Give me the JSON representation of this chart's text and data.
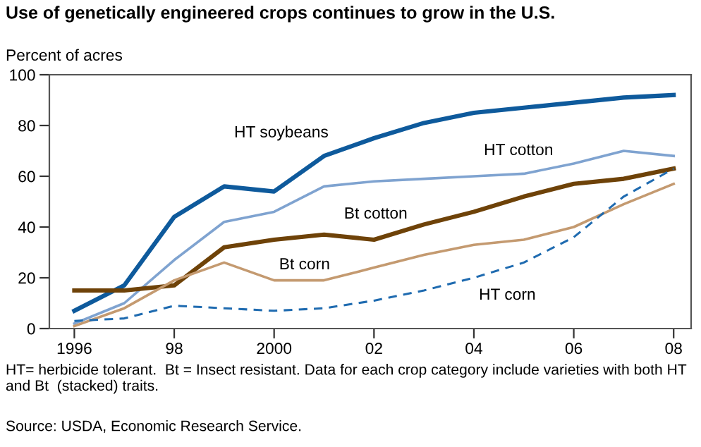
{
  "chart_data": {
    "type": "line",
    "title": "Use of genetically engineered crops continues to grow in the U.S.",
    "ylabel": "Percent of acres",
    "x": [
      1996,
      1997,
      1998,
      1999,
      2000,
      2001,
      2002,
      2003,
      2004,
      2005,
      2006,
      2007,
      2008
    ],
    "series": [
      {
        "name": "HT soybeans",
        "color": "#0e5a9c",
        "values": [
          7,
          17,
          44,
          56,
          54,
          68,
          75,
          81,
          85,
          87,
          89,
          91,
          92
        ]
      },
      {
        "name": "HT cotton",
        "color": "#7fa3d0",
        "values": [
          2,
          10,
          27,
          42,
          46,
          56,
          58,
          59,
          60,
          61,
          65,
          70,
          68
        ]
      },
      {
        "name": "Bt cotton",
        "color": "#6e4208",
        "values": [
          15,
          15,
          17,
          32,
          35,
          37,
          35,
          41,
          46,
          52,
          57,
          59,
          63
        ]
      },
      {
        "name": "Bt corn",
        "color": "#c49a70",
        "values": [
          1,
          8,
          19,
          26,
          19,
          19,
          24,
          29,
          33,
          35,
          40,
          49,
          57
        ]
      },
      {
        "name": "HT corn",
        "color": "#1f6bb0",
        "line_style": "dashed",
        "values": [
          3,
          4,
          9,
          8,
          7,
          8,
          11,
          15,
          20,
          26,
          36,
          52,
          63
        ]
      }
    ],
    "xlim": [
      1995.5,
      2008.35
    ],
    "ylim": [
      0,
      100
    ],
    "xticks": [
      1996,
      {
        "value": 1998,
        "label": "98"
      },
      2000,
      {
        "value": 2002,
        "label": "02"
      },
      {
        "value": 2004,
        "label": "04"
      },
      {
        "value": 2006,
        "label": "06"
      },
      {
        "value": 2008,
        "label": "08"
      }
    ],
    "yticks": [
      0,
      20,
      40,
      60,
      80,
      100
    ],
    "grid": false,
    "legend": false,
    "marker": "none",
    "annotations": [
      "HT= herbicide tolerant.  Bt = Insect resistant. Data for each crop category include varieties with both HT and Bt  (stacked) traits.",
      "Source: USDA, Economic Research Service."
    ]
  }
}
